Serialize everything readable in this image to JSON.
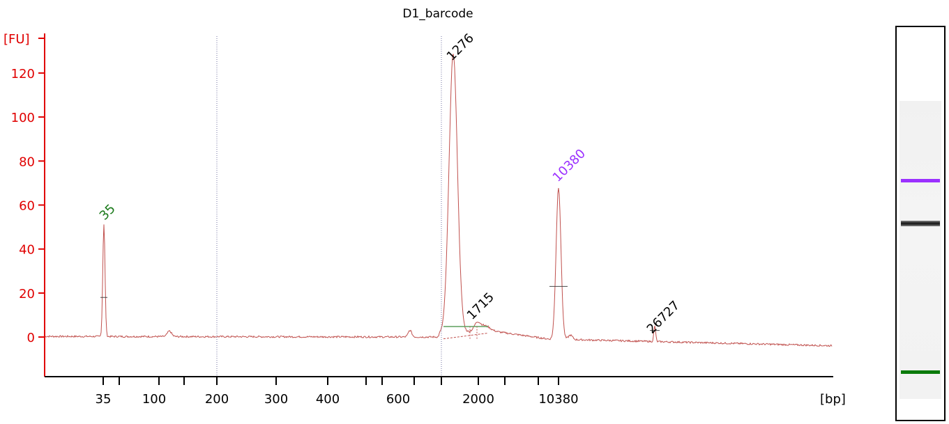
{
  "chart_data": {
    "type": "line",
    "title": "D1_barcode",
    "ylabel": "[FU]",
    "xlabel": "[bp]",
    "ylim": [
      -18,
      138
    ],
    "grid": false,
    "y_ticks": [
      0,
      20,
      40,
      60,
      80,
      100,
      120
    ],
    "y_tick_labels": [
      "0",
      "20",
      "40",
      "60",
      "80",
      "100",
      "120"
    ],
    "x_tick_labels": [
      "35",
      "100",
      "200",
      "300",
      "400",
      "600",
      "2000",
      "10380"
    ],
    "colors": {
      "axis": "#e00000",
      "trace": "#c0504d",
      "lower_marker": "#007a00",
      "upper_marker": "#9b30ff",
      "peak_label": "#000000",
      "region_line": "#5f9f5f",
      "dotted_divider": "#7070a0"
    },
    "peaks": [
      {
        "label": "35",
        "fu": 51,
        "color": "#1a7a1a",
        "role": "lower_marker"
      },
      {
        "label": "1276",
        "fu": 127,
        "color": "#000000",
        "role": "sample"
      },
      {
        "label": "1715",
        "fu": 5,
        "color": "#000000",
        "role": "sample"
      },
      {
        "label": "10380",
        "fu": 69,
        "color": "#9b30ff",
        "role": "upper_marker"
      },
      {
        "label": "26727",
        "fu": 7,
        "color": "#000000",
        "role": "sample"
      }
    ],
    "gel": {
      "bands": [
        {
          "name": "upper-marker-band",
          "color": "#9b30ff"
        },
        {
          "name": "sample-band",
          "color": "#222222"
        },
        {
          "name": "lower-marker-band",
          "color": "#0a7a0a"
        }
      ]
    }
  }
}
